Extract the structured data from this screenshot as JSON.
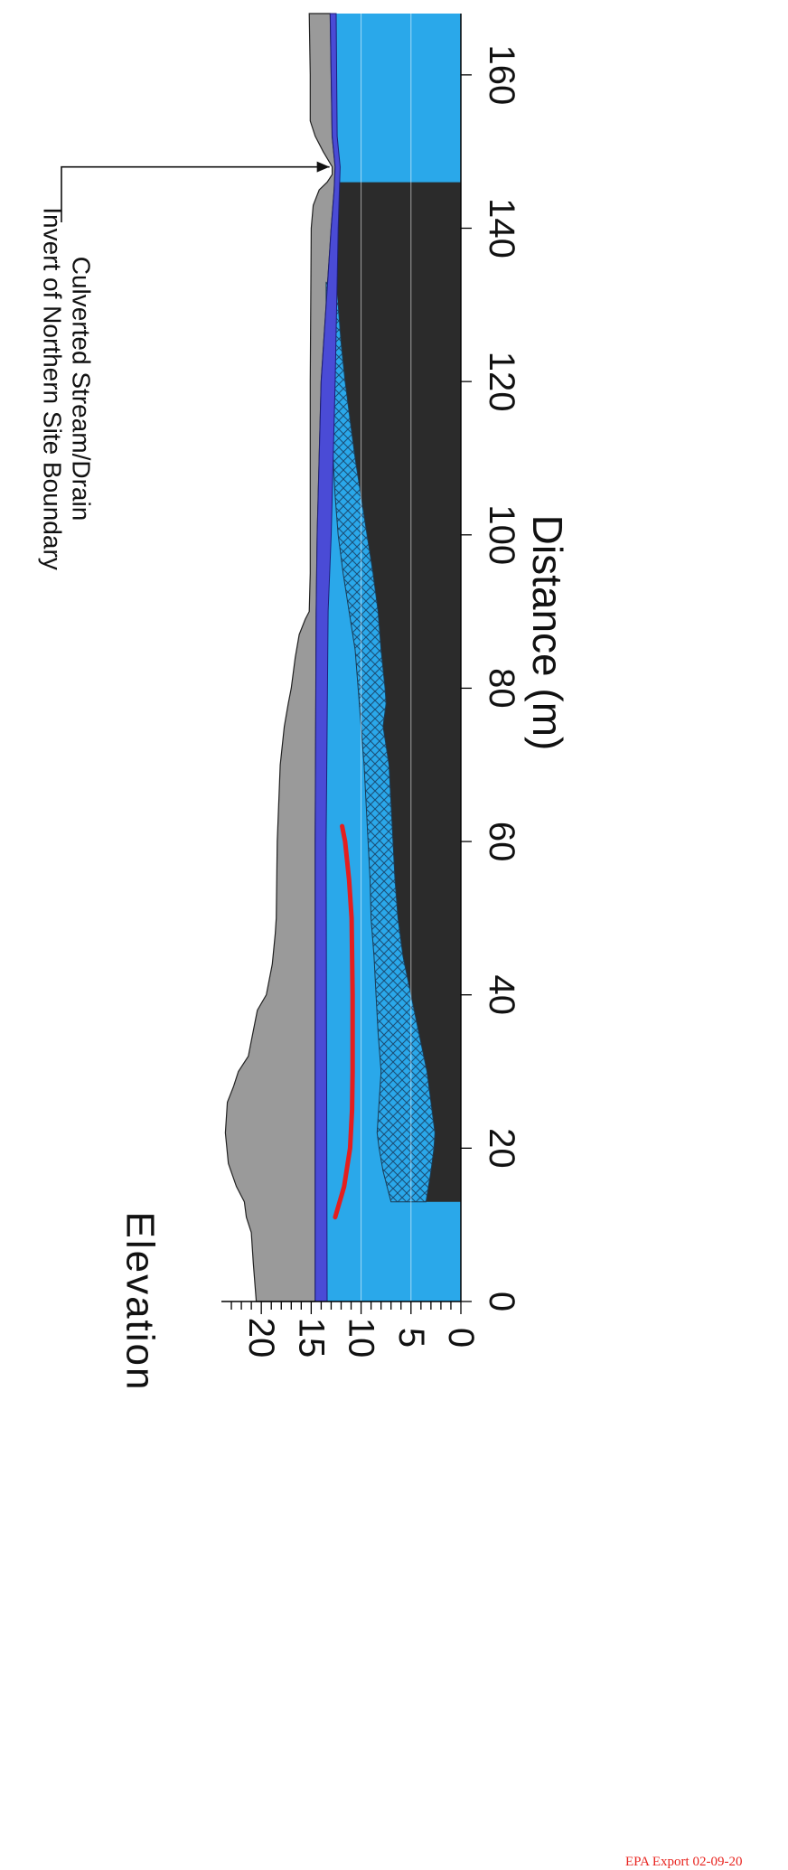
{
  "chart_data": {
    "type": "area",
    "title": "",
    "xlabel": "Distance (m)",
    "ylabel": "Elevation",
    "xlim": [
      0,
      168
    ],
    "ylim": [
      0,
      24
    ],
    "x_ticks": [
      0,
      20,
      40,
      60,
      80,
      100,
      120,
      140,
      160
    ],
    "y_ticks": [
      0,
      5,
      10,
      15,
      20
    ],
    "orientation": "rotated-90-clockwise",
    "grid": "horizontal",
    "annotation": {
      "lines": [
        "Invert of Northern Site Boundary",
        "Culverted Stream/Drain"
      ],
      "target": [
        148,
        12.8
      ]
    },
    "layers": [
      {
        "role": "ground-surface",
        "color": "#9a9a9a",
        "upper": [
          [
            0,
            20.5
          ],
          [
            5,
            20.8
          ],
          [
            9,
            21
          ],
          [
            11,
            21.5
          ],
          [
            13,
            21.7
          ],
          [
            15,
            22.5
          ],
          [
            18,
            23.3
          ],
          [
            22,
            23.6
          ],
          [
            26,
            23.4
          ],
          [
            28,
            22.8
          ],
          [
            30,
            22.3
          ],
          [
            32,
            21.3
          ],
          [
            34,
            21
          ],
          [
            38,
            20.4
          ],
          [
            40,
            19.5
          ],
          [
            44,
            18.9
          ],
          [
            48,
            18.6
          ],
          [
            50,
            18.5
          ],
          [
            60,
            18.4
          ],
          [
            70,
            18.1
          ],
          [
            75,
            17.7
          ],
          [
            78,
            17.3
          ],
          [
            80,
            17
          ],
          [
            84,
            16.6
          ],
          [
            87,
            16.2
          ],
          [
            89,
            15.6
          ],
          [
            90,
            15.2
          ],
          [
            95,
            15.1
          ],
          [
            120,
            15.1
          ],
          [
            140,
            15
          ],
          [
            143,
            14.8
          ],
          [
            145,
            14.2
          ],
          [
            146,
            13.4
          ],
          [
            147,
            12.9
          ],
          [
            148,
            12.9
          ],
          [
            150,
            13.8
          ],
          [
            152,
            14.6
          ],
          [
            154,
            15.1
          ],
          [
            160,
            15.1
          ],
          [
            168,
            15.2
          ]
        ]
      },
      {
        "role": "water-table",
        "color": "#4a4bd6",
        "upper": [
          [
            0,
            14.6
          ],
          [
            60,
            14.6
          ],
          [
            90,
            14.5
          ],
          [
            100,
            14.4
          ],
          [
            120,
            14
          ],
          [
            140,
            13
          ],
          [
            145,
            12.7
          ],
          [
            148,
            12.6
          ],
          [
            152,
            12.9
          ],
          [
            168,
            13.1
          ]
        ],
        "lower": [
          [
            0,
            13.4
          ],
          [
            60,
            13.5
          ],
          [
            90,
            13.3
          ],
          [
            100,
            13
          ],
          [
            120,
            12.6
          ],
          [
            140,
            12.3
          ],
          [
            148,
            12.1
          ],
          [
            152,
            12.4
          ],
          [
            168,
            12.5
          ]
        ]
      },
      {
        "role": "saturated-zone",
        "color": "#2aa8ea",
        "from_x": 0,
        "to_x": 168
      },
      {
        "role": "hatched-unit",
        "color": "#2aa8ea",
        "pattern": "crosshatch",
        "upper": [
          [
            13,
            7
          ],
          [
            17,
            7.8
          ],
          [
            20,
            8.2
          ],
          [
            22,
            8.4
          ],
          [
            26,
            8.2
          ],
          [
            30,
            8
          ],
          [
            35,
            8.3
          ],
          [
            40,
            8.5
          ],
          [
            45,
            8.7
          ],
          [
            50,
            9
          ],
          [
            55,
            9.1
          ],
          [
            60,
            9.3
          ],
          [
            65,
            9.5
          ],
          [
            70,
            9.7
          ],
          [
            75,
            10
          ],
          [
            80,
            10.3
          ],
          [
            85,
            10.6
          ],
          [
            90,
            11.2
          ],
          [
            95,
            11.8
          ],
          [
            100,
            12.3
          ],
          [
            105,
            12.6
          ],
          [
            110,
            12.8
          ],
          [
            115,
            13
          ],
          [
            120,
            13.2
          ],
          [
            125,
            13.4
          ],
          [
            130,
            13.5
          ],
          [
            133,
            13.5
          ]
        ],
        "lower": [
          [
            13,
            3.5
          ],
          [
            17,
            3
          ],
          [
            20,
            2.7
          ],
          [
            22,
            2.6
          ],
          [
            26,
            3
          ],
          [
            30,
            3.4
          ],
          [
            35,
            4.2
          ],
          [
            40,
            5
          ],
          [
            45,
            5.8
          ],
          [
            50,
            6.3
          ],
          [
            55,
            6.6
          ],
          [
            60,
            6.8
          ],
          [
            65,
            7
          ],
          [
            70,
            7.2
          ],
          [
            75,
            7.8
          ],
          [
            78,
            7.5
          ],
          [
            80,
            7.6
          ],
          [
            85,
            8
          ],
          [
            90,
            8.3
          ],
          [
            95,
            8.8
          ],
          [
            100,
            9.4
          ],
          [
            105,
            10
          ],
          [
            110,
            10.6
          ],
          [
            115,
            11.1
          ],
          [
            120,
            11.6
          ],
          [
            125,
            12
          ],
          [
            130,
            12.3
          ],
          [
            135,
            12.7
          ],
          [
            140,
            12.6
          ],
          [
            146,
            12.5
          ]
        ]
      },
      {
        "role": "bedrock",
        "color": "#2b2b2b",
        "from_x": 13,
        "to_x": 146
      },
      {
        "role": "measured-trace",
        "color": "#e51e1e",
        "points": [
          [
            11,
            12.6
          ],
          [
            15,
            11.7
          ],
          [
            20,
            11.1
          ],
          [
            25,
            10.9
          ],
          [
            30,
            10.85
          ],
          [
            40,
            10.85
          ],
          [
            50,
            10.95
          ],
          [
            55,
            11.2
          ],
          [
            60,
            11.6
          ],
          [
            62,
            11.9
          ]
        ]
      }
    ]
  },
  "footer": {
    "text": "EPA Export 02-09-20"
  }
}
